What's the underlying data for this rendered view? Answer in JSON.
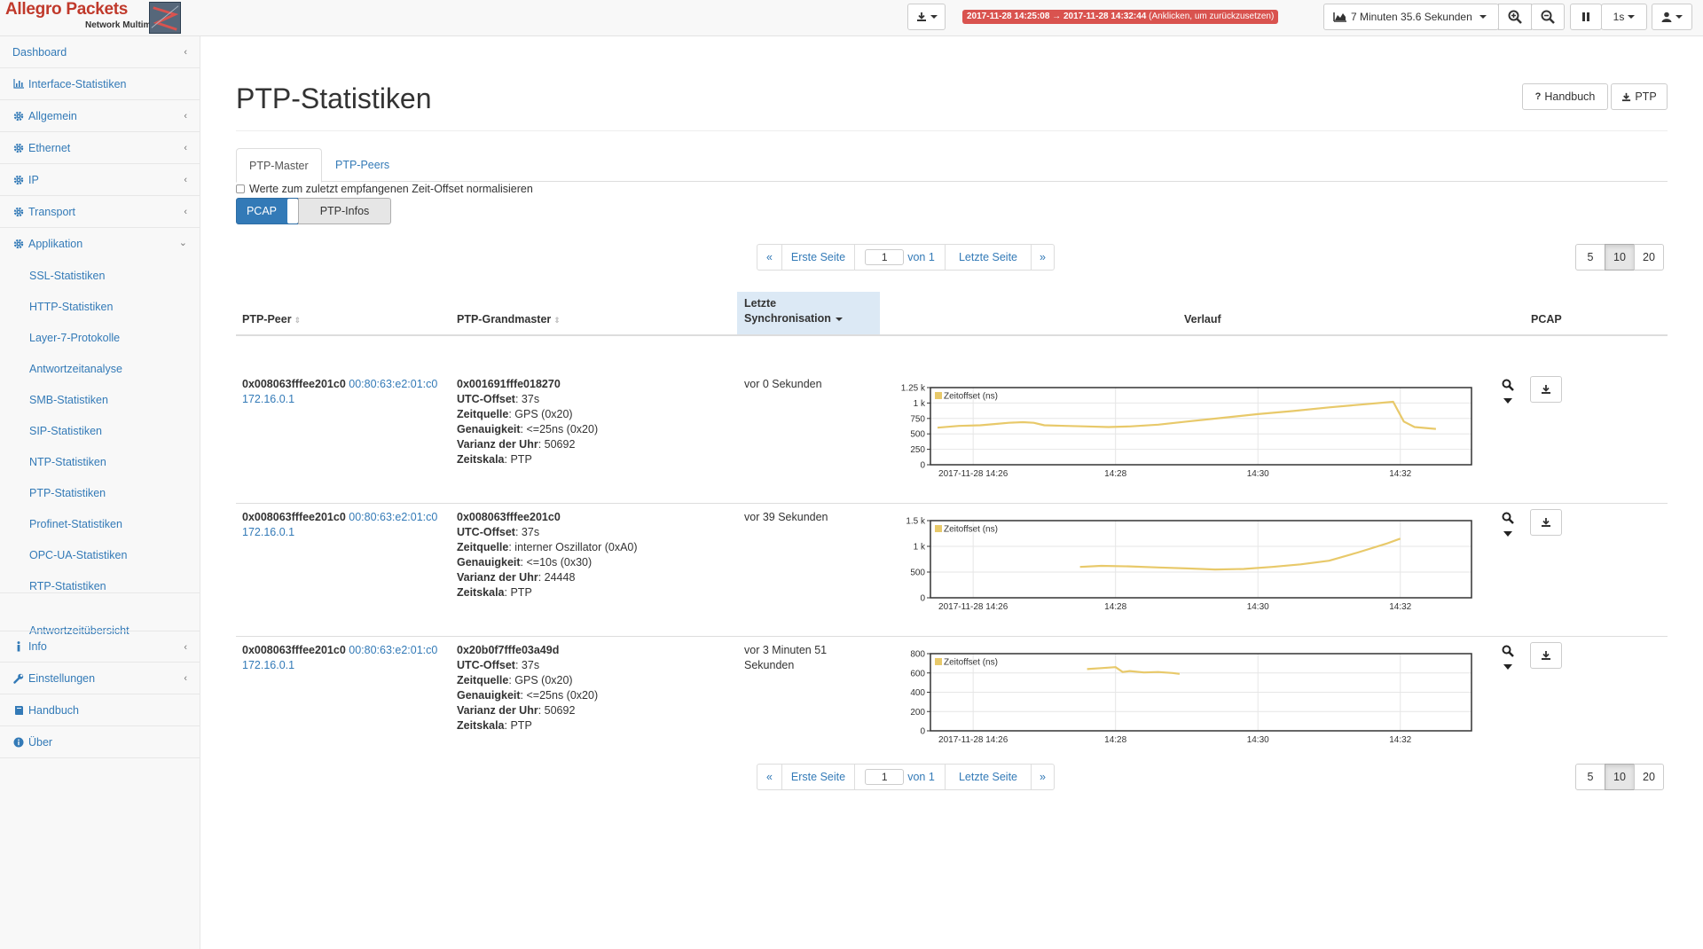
{
  "brand": {
    "title": "Allegro Packets",
    "subtitle": "Network Multimeter"
  },
  "topbar": {
    "time_range": "2017-11-28 14:25:08 → 2017-11-28 14:32:44",
    "time_range_hint": "(Anklicken, um zurückzusetzen)",
    "duration_label": "7 Minuten 35.6 Sekunden",
    "interval_label": "1s",
    "accent": "#d9534f"
  },
  "sidebar": {
    "items": [
      {
        "label": "Dashboard",
        "icon": "none"
      },
      {
        "label": "Interface-Statistiken",
        "icon": "bar-chart-icon"
      },
      {
        "label": "Allgemein",
        "icon": "gear-icon"
      },
      {
        "label": "Ethernet",
        "icon": "gear-icon"
      },
      {
        "label": "IP",
        "icon": "gear-icon"
      },
      {
        "label": "Transport",
        "icon": "gear-icon"
      },
      {
        "label": "Applikation",
        "icon": "gear-icon"
      }
    ],
    "sub_items": [
      "SSL-Statistiken",
      "HTTP-Statistiken",
      "Layer-7-Protokolle",
      "Antwortzeitanalyse",
      "SMB-Statistiken",
      "SIP-Statistiken",
      "NTP-Statistiken",
      "PTP-Statistiken",
      "Profinet-Statistiken",
      "OPC-UA-Statistiken",
      "RTP-Statistiken",
      "Antwortzeitübersicht"
    ],
    "bottom_items": [
      {
        "label": "Info",
        "icon": "info-icon"
      },
      {
        "label": "Einstellungen",
        "icon": "wrench-icon"
      },
      {
        "label": "Handbuch",
        "icon": "book-icon"
      },
      {
        "label": "Über",
        "icon": "info-circle-icon"
      }
    ]
  },
  "page": {
    "title": "PTP-Statistiken",
    "manual_button": "Handbuch",
    "ptp_button": "PTP",
    "tabs": [
      "PTP-Master",
      "PTP-Peers"
    ],
    "normalize_checkbox": "Werte zum zuletzt empfangenen Zeit-Offset normalisieren",
    "toggle_on": "PCAP",
    "toggle_off": "PTP-Infos"
  },
  "pagination": {
    "prev": "«",
    "first": "Erste Seite",
    "page_value": "1",
    "of": "von 1",
    "last": "Letzte Seite",
    "next": "»",
    "sizes": [
      "5",
      "10",
      "20"
    ]
  },
  "table": {
    "headers": {
      "peer": "PTP-Peer",
      "grandmaster": "PTP-Grandmaster",
      "sync_line1": "Letzte",
      "sync_line2": "Synchronisation",
      "history": "Verlauf",
      "pcap": "PCAP"
    },
    "field_labels": {
      "utc": "UTC-Offset",
      "source": "Zeitquelle",
      "accuracy": "Genauigkeit",
      "variance": "Varianz der Uhr",
      "scale": "Zeitskala"
    },
    "rows": [
      {
        "peer_id": "0x008063fffee201c0",
        "peer_mac": "00:80:63:e2:01:c0",
        "peer_ip": "172.16.0.1",
        "gm_id": "0x001691fffe018270",
        "utc": "37s",
        "source": "GPS (0x20)",
        "accuracy": "<=25ns (0x20)",
        "variance": "50692",
        "scale": "PTP",
        "sync_line1": "vor 0 Sekunden",
        "sync_line2": ""
      },
      {
        "peer_id": "0x008063fffee201c0",
        "peer_mac": "00:80:63:e2:01:c0",
        "peer_ip": "172.16.0.1",
        "gm_id": "0x008063fffee201c0",
        "utc": "37s",
        "source": "interner Oszillator (0xA0)",
        "accuracy": "<=10s (0x30)",
        "variance": "24448",
        "scale": "PTP",
        "sync_line1": "vor 39 Sekunden",
        "sync_line2": ""
      },
      {
        "peer_id": "0x008063fffee201c0",
        "peer_mac": "00:80:63:e2:01:c0",
        "peer_ip": "172.16.0.1",
        "gm_id": "0x20b0f7fffe03a49d",
        "utc": "37s",
        "source": "GPS (0x20)",
        "accuracy": "<=25ns (0x20)",
        "variance": "50692",
        "scale": "PTP",
        "sync_line1": "vor 3 Minuten 51",
        "sync_line2": "Sekunden"
      }
    ]
  },
  "chart_data": [
    {
      "type": "line",
      "legend": "Zeitoffset (ns)",
      "xtick_labels": [
        "2017-11-28 14:26",
        "14:28",
        "14:30",
        "14:32"
      ],
      "xticks_min": [
        26,
        28,
        30,
        32
      ],
      "x_range_min": [
        25.4,
        33.0
      ],
      "ytick_labels": [
        "0",
        "250",
        "500",
        "750",
        "1 k",
        "1.25 k"
      ],
      "yticks": [
        0,
        250,
        500,
        750,
        1000,
        1250
      ],
      "ylim": [
        0,
        1250
      ],
      "color": "#e8c96a",
      "series": [
        {
          "x": [
            25.5,
            25.8,
            26.1,
            26.3,
            26.5,
            26.7,
            26.85,
            27.0,
            27.3,
            27.6,
            27.9,
            28.2,
            28.6,
            29.0,
            29.5,
            30.0,
            30.5,
            31.0,
            31.5,
            31.9,
            32.05,
            32.2,
            32.5
          ],
          "y": [
            600,
            630,
            640,
            660,
            680,
            690,
            680,
            640,
            630,
            620,
            610,
            620,
            650,
            700,
            760,
            820,
            870,
            930,
            980,
            1020,
            700,
            610,
            580
          ]
        }
      ]
    },
    {
      "type": "line",
      "legend": "Zeitoffset (ns)",
      "xtick_labels": [
        "2017-11-28 14:26",
        "14:28",
        "14:30",
        "14:32"
      ],
      "xticks_min": [
        26,
        28,
        30,
        32
      ],
      "x_range_min": [
        25.4,
        33.0
      ],
      "ytick_labels": [
        "0",
        "500",
        "1 k",
        "1.5 k"
      ],
      "yticks": [
        0,
        500,
        1000,
        1500
      ],
      "ylim": [
        0,
        1500
      ],
      "color": "#e8c96a",
      "series": [
        {
          "x": [
            27.5,
            27.8,
            28.2,
            28.6,
            29.0,
            29.4,
            29.8,
            30.2,
            30.6,
            31.0,
            31.4,
            31.8,
            32.0
          ],
          "y": [
            600,
            620,
            610,
            590,
            570,
            550,
            560,
            600,
            650,
            720,
            880,
            1050,
            1150
          ]
        }
      ]
    },
    {
      "type": "line",
      "legend": "Zeitoffset (ns)",
      "xtick_labels": [
        "2017-11-28 14:26",
        "14:28",
        "14:30",
        "14:32"
      ],
      "xticks_min": [
        26,
        28,
        30,
        32
      ],
      "x_range_min": [
        25.4,
        33.0
      ],
      "ytick_labels": [
        "0",
        "200",
        "400",
        "600",
        "800"
      ],
      "yticks": [
        0,
        200,
        400,
        600,
        800
      ],
      "ylim": [
        0,
        800
      ],
      "color": "#e8c96a",
      "series": [
        {
          "x": [
            27.6,
            27.8,
            28.0,
            28.1,
            28.2,
            28.4,
            28.6,
            28.8,
            28.9
          ],
          "y": [
            640,
            650,
            660,
            610,
            620,
            605,
            610,
            600,
            590
          ]
        }
      ]
    }
  ]
}
